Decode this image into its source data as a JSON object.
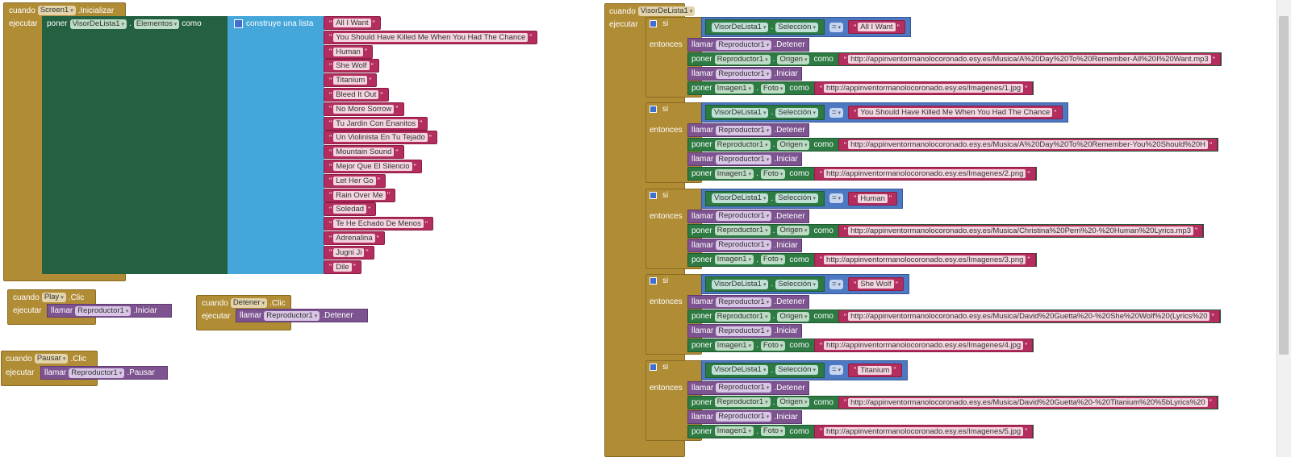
{
  "init": {
    "when": "cuando",
    "screen": "Screen1",
    "event": ".Inicializar",
    "do": "ejecutar",
    "set": "poner",
    "list_comp": "VisorDeLista1",
    "dot": ".",
    "prop": "Elementos",
    "as": "como",
    "build_list": "construye una lista",
    "items": [
      "All I Want",
      "You Should Have Killed Me When You Had The Chance",
      "Human",
      "She Wolf",
      "Titanium",
      "Bleed It Out",
      "No More Sorrow",
      "Tu Jardin Con Enanitos",
      "Un Violinista En Tu Tejado",
      "Mountain Sound",
      "Mejor Que El Silencio",
      "Let Her Go",
      "Rain Over Me",
      "Soledad",
      "Te He Echado De Menos",
      "Adrenalina",
      "Jugni Ji",
      "Dile"
    ]
  },
  "play": {
    "when": "cuando",
    "comp": "Play",
    "event": ".Clic",
    "do": "ejecutar",
    "call": "llamar",
    "target": "Reproductor1",
    "method": ".Iniciar"
  },
  "stop": {
    "when": "cuando",
    "comp": "Detener",
    "event": ".Clic",
    "do": "ejecutar",
    "call": "llamar",
    "target": "Reproductor1",
    "method": ".Detener"
  },
  "pause": {
    "when": "cuando",
    "comp": "Pausar",
    "event": ".Clic",
    "do": "ejecutar",
    "call": "llamar",
    "target": "Reproductor1",
    "method": ".Pausar"
  },
  "after": {
    "when": "cuando",
    "comp": "VisorDeLista1",
    "event": ".DespuésDeSelección",
    "do": "ejecutar",
    "if": "si",
    "then": "entonces",
    "sel_comp": "VisorDeLista1",
    "dot": ".",
    "sel_prop": "Selección",
    "eq": "=",
    "call": "llamar",
    "set": "poner",
    "as": "como",
    "player": "Reproductor1",
    "stop_m": ".Detener",
    "start_m": ".Iniciar",
    "source_prop": "Origen",
    "image": "Imagen1",
    "photo_prop": "Foto",
    "branches": [
      {
        "match": "All I Want",
        "audio": "http://appinventormanolocoronado.esy.es/Musica/A%20Day%20To%20Remember-All%20I%20Want.mp3",
        "img": "http://appinventormanolocoronado.esy.es/Imagenes/1.jpg"
      },
      {
        "match": "You Should Have Killed Me When You Had The Chance",
        "audio": "http://appinventormanolocoronado.esy.es/Musica/A%20Day%20To%20Remember-You%20Should%20H",
        "img": "http://appinventormanolocoronado.esy.es/Imagenes/2.png"
      },
      {
        "match": "Human",
        "audio": "http://appinventormanolocoronado.esy.es/Musica/Christina%20Perri%20-%20Human%20Lyrics.mp3",
        "img": "http://appinventormanolocoronado.esy.es/Imagenes/3.png"
      },
      {
        "match": "She Wolf",
        "audio": "http://appinventormanolocoronado.esy.es/Musica/David%20Guetta%20-%20She%20Wolf%20(Lyrics%20",
        "img": "http://appinventormanolocoronado.esy.es/Imagenes/4.jpg"
      },
      {
        "match": "Titanium",
        "audio": "http://appinventormanolocoronado.esy.es/Musica/David%20Guetta%20-%20Titanium%20%5bLyrics%20",
        "img": "http://appinventormanolocoronado.esy.es/Imagenes/5.jpg"
      }
    ]
  }
}
